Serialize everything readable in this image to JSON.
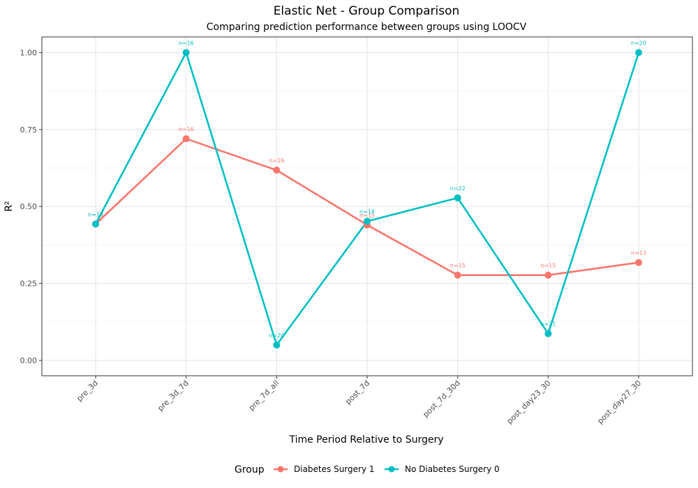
{
  "chart_data": {
    "type": "line",
    "title": "Elastic Net - Group Comparison",
    "subtitle": "Comparing prediction performance between groups using LOOCV",
    "xlabel": "Time Period Relative to Surgery",
    "ylabel": "R²",
    "ylim": [
      -0.05,
      1.05
    ],
    "yticks": [
      0.0,
      0.25,
      0.5,
      0.75,
      1.0
    ],
    "ytick_labels": [
      "0.00",
      "0.25",
      "0.50",
      "0.75",
      "1.00"
    ],
    "categories": [
      "pre_3d",
      "pre_3d_7d",
      "pre_7d_all",
      "post_7d",
      "post_7d_30d",
      "post_day23_30",
      "post_day27_30"
    ],
    "grid": true,
    "legend": {
      "title": "Group",
      "position": "bottom"
    },
    "series": [
      {
        "name": "Diabetes Surgery 1",
        "color": "#F8766D",
        "values": [
          0.443,
          0.72,
          0.618,
          0.44,
          0.277,
          0.277,
          0.318
        ],
        "n_labels": [
          "n=15",
          "n=16",
          "n=16",
          "n=15",
          "n=15",
          "n=15",
          "n=13"
        ]
      },
      {
        "name": "No Diabetes Surgery 0",
        "color": "#00BFC4",
        "values": [
          0.443,
          1.0,
          0.05,
          0.452,
          0.528,
          0.087,
          1.0
        ],
        "n_labels": [
          "n=18",
          "n=16",
          "n=20",
          "n=18",
          "n=22",
          "n=21",
          "n=20"
        ]
      }
    ]
  }
}
